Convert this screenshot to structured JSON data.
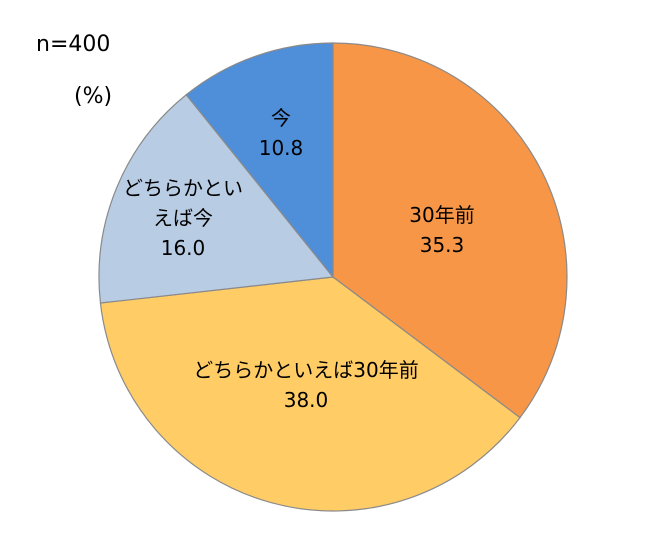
{
  "header": {
    "sample_size": "n=400",
    "unit": "(%)"
  },
  "chart_data": {
    "type": "pie",
    "unit": "%",
    "start_angle_deg": 0,
    "direction": "clockwise",
    "slices": [
      {
        "label": "30年前",
        "value": 35.3,
        "color": "#F79646",
        "label_color": "#ffffff"
      },
      {
        "label": "どちらかといえば30年前",
        "value": 38.0,
        "color": "#FFCC66",
        "label_color": "#000000"
      },
      {
        "label": "どちらかといえば今",
        "label_lines": [
          "どちらかとい",
          "えば今"
        ],
        "value": 16.0,
        "color": "#B8CCE4",
        "label_color": "#000000"
      },
      {
        "label": "今",
        "value": 10.8,
        "color": "#4F8FD9",
        "label_color": "#ffffff"
      }
    ]
  }
}
